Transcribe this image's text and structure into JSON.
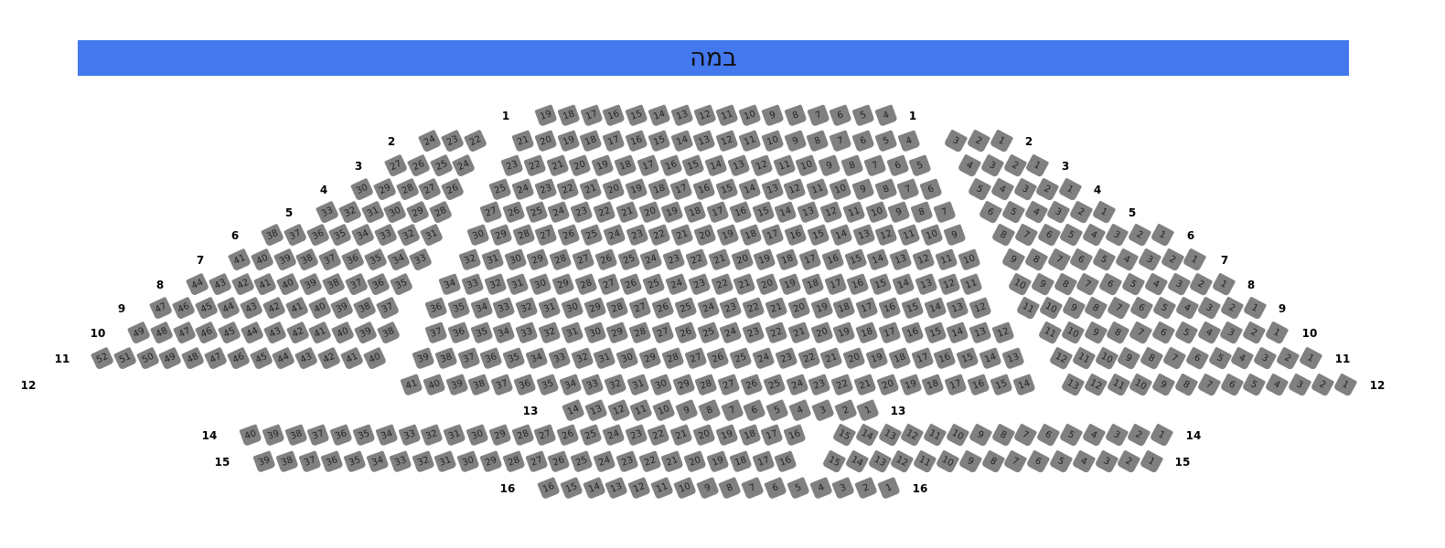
{
  "stage": {
    "label": "במה",
    "color": "#4478ee"
  },
  "seat_color": "#808080",
  "rows": [
    {
      "label": "1",
      "blocks": [
        {
          "from": 19,
          "to": 4
        }
      ]
    },
    {
      "label": "2",
      "blocks": [
        {
          "from": 24,
          "to": 22
        },
        {
          "from": 21,
          "to": 4
        },
        {
          "from": 3,
          "to": 1
        }
      ]
    },
    {
      "label": "3",
      "blocks": [
        {
          "from": 27,
          "to": 24
        },
        {
          "from": 23,
          "to": 5
        },
        {
          "from": 4,
          "to": 1
        }
      ]
    },
    {
      "label": "4",
      "blocks": [
        {
          "from": 30,
          "to": 26
        },
        {
          "from": 25,
          "to": 6
        },
        {
          "from": 5,
          "to": 1
        }
      ]
    },
    {
      "label": "5",
      "blocks": [
        {
          "from": 33,
          "to": 28
        },
        {
          "from": 27,
          "to": 7
        },
        {
          "from": 6,
          "to": 1
        }
      ]
    },
    {
      "label": "6",
      "blocks": [
        {
          "from": 38,
          "to": 31
        },
        {
          "from": 30,
          "to": 9
        },
        {
          "from": 8,
          "to": 1
        }
      ]
    },
    {
      "label": "7",
      "blocks": [
        {
          "from": 41,
          "to": 33
        },
        {
          "from": 32,
          "to": 10
        },
        {
          "from": 9,
          "to": 1
        }
      ]
    },
    {
      "label": "8",
      "blocks": [
        {
          "from": 44,
          "to": 35
        },
        {
          "from": 34,
          "to": 11
        },
        {
          "from": 10,
          "to": 1
        }
      ]
    },
    {
      "label": "9",
      "blocks": [
        {
          "from": 47,
          "to": 37
        },
        {
          "from": 36,
          "to": 12
        },
        {
          "from": 11,
          "to": 1
        }
      ]
    },
    {
      "label": "10",
      "blocks": [
        {
          "from": 49,
          "to": 38
        },
        {
          "from": 37,
          "to": 12
        },
        {
          "from": 11,
          "to": 1
        }
      ]
    },
    {
      "label": "11",
      "blocks": [
        {
          "from": 52,
          "to": 40
        },
        {
          "from": 39,
          "to": 13
        },
        {
          "from": 12,
          "to": 1
        }
      ]
    },
    {
      "label": "12",
      "blocks": [
        {
          "from": 41,
          "to": 14
        },
        {
          "from": 13,
          "to": 1
        }
      ]
    },
    {
      "label": "13",
      "blocks": [
        {
          "from": 14,
          "to": 1
        }
      ]
    },
    {
      "label": "14",
      "blocks": [
        {
          "from": 40,
          "to": 16
        },
        {
          "from": 15,
          "to": 1
        }
      ]
    },
    {
      "label": "15",
      "blocks": [
        {
          "from": 39,
          "to": 16
        },
        {
          "from": 15,
          "to": 1
        }
      ]
    },
    {
      "label": "16",
      "blocks": [
        {
          "from": 16,
          "to": 1
        }
      ]
    }
  ]
}
